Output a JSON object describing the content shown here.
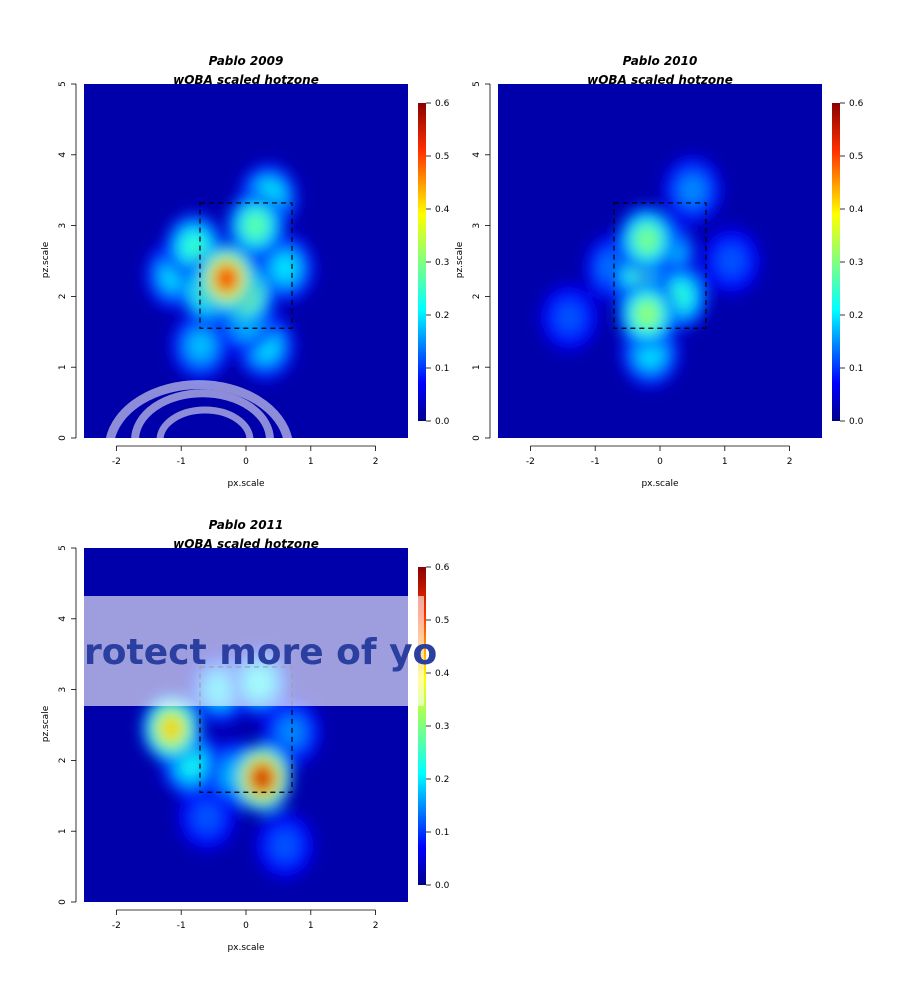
{
  "chart_data": [
    {
      "type": "heatmap",
      "title": "Pablo 2009",
      "subtitle": "wOBA scaled hotzone",
      "xlabel": "px.scale",
      "ylabel": "pz.scale",
      "xlim": [
        -2.5,
        2.5
      ],
      "ylim": [
        0,
        5
      ],
      "xticks": [
        -2,
        -1,
        0,
        1,
        2
      ],
      "yticks": [
        0,
        1,
        2,
        3,
        4,
        5
      ],
      "strike_zone": {
        "x": [
          -0.71,
          0.71
        ],
        "z": [
          1.55,
          3.32
        ]
      },
      "colorbar": {
        "min": 0.0,
        "max": 0.6,
        "ticks": [
          "0.0",
          "0.1",
          "0.2",
          "0.3",
          "0.4",
          "0.5",
          "0.6"
        ]
      },
      "hotspots": [
        {
          "x": -0.3,
          "z": 2.25,
          "value": 0.52
        },
        {
          "x": -0.05,
          "z": 2.05,
          "value": 0.38
        },
        {
          "x": -0.55,
          "z": 2.1,
          "value": 0.33
        },
        {
          "x": 0.15,
          "z": 3.0,
          "value": 0.28
        },
        {
          "x": 0.35,
          "z": 3.4,
          "value": 0.22
        },
        {
          "x": -0.8,
          "z": 2.7,
          "value": 0.25
        },
        {
          "x": -1.1,
          "z": 2.3,
          "value": 0.2
        },
        {
          "x": -0.7,
          "z": 1.3,
          "value": 0.18
        },
        {
          "x": 0.3,
          "z": 1.3,
          "value": 0.2
        },
        {
          "x": 0.6,
          "z": 2.4,
          "value": 0.2
        },
        {
          "x": 0.0,
          "z": 1.7,
          "value": 0.22
        }
      ]
    },
    {
      "type": "heatmap",
      "title": "Pablo 2010",
      "subtitle": "wOBA scaled hotzone",
      "xlabel": "px.scale",
      "ylabel": "pz.scale",
      "xlim": [
        -2.5,
        2.5
      ],
      "ylim": [
        0,
        5
      ],
      "xticks": [
        -2,
        -1,
        0,
        1,
        2
      ],
      "yticks": [
        0,
        1,
        2,
        3,
        4,
        5
      ],
      "strike_zone": {
        "x": [
          -0.71,
          0.71
        ],
        "z": [
          1.55,
          3.32
        ]
      },
      "colorbar": {
        "min": 0.0,
        "max": 0.6,
        "ticks": [
          "0.0",
          "0.1",
          "0.2",
          "0.3",
          "0.4",
          "0.5",
          "0.6"
        ]
      },
      "hotspots": [
        {
          "x": -0.2,
          "z": 2.8,
          "value": 0.3
        },
        {
          "x": -0.2,
          "z": 1.75,
          "value": 0.32
        },
        {
          "x": -0.3,
          "z": 2.3,
          "value": 0.26
        },
        {
          "x": 0.3,
          "z": 2.0,
          "value": 0.24
        },
        {
          "x": 0.1,
          "z": 2.6,
          "value": 0.22
        },
        {
          "x": -0.15,
          "z": 1.2,
          "value": 0.2
        },
        {
          "x": 0.5,
          "z": 3.5,
          "value": 0.15
        },
        {
          "x": -0.7,
          "z": 2.4,
          "value": 0.15
        },
        {
          "x": -1.4,
          "z": 1.7,
          "value": 0.12
        },
        {
          "x": 1.1,
          "z": 2.5,
          "value": 0.12
        }
      ]
    },
    {
      "type": "heatmap",
      "title": "Pablo 2011",
      "subtitle": "wOBA scaled hotzone",
      "xlabel": "px.scale",
      "ylabel": "pz.scale",
      "xlim": [
        -2.5,
        2.5
      ],
      "ylim": [
        0,
        5
      ],
      "xticks": [
        -2,
        -1,
        0,
        1,
        2
      ],
      "yticks": [
        0,
        1,
        2,
        3,
        4,
        5
      ],
      "strike_zone": {
        "x": [
          -0.71,
          0.71
        ],
        "z": [
          1.55,
          3.32
        ]
      },
      "colorbar": {
        "min": 0.0,
        "max": 0.6,
        "ticks": [
          "0.0",
          "0.1",
          "0.2",
          "0.3",
          "0.4",
          "0.5",
          "0.6"
        ]
      },
      "hotspots": [
        {
          "x": 0.25,
          "z": 1.75,
          "value": 0.55
        },
        {
          "x": -1.15,
          "z": 2.45,
          "value": 0.42
        },
        {
          "x": -0.85,
          "z": 1.95,
          "value": 0.22
        },
        {
          "x": -0.4,
          "z": 3.0,
          "value": 0.2
        },
        {
          "x": 0.2,
          "z": 3.1,
          "value": 0.22
        },
        {
          "x": -0.2,
          "z": 1.8,
          "value": 0.18
        },
        {
          "x": 0.7,
          "z": 2.4,
          "value": 0.15
        },
        {
          "x": -0.6,
          "z": 1.2,
          "value": 0.12
        },
        {
          "x": 0.6,
          "z": 0.8,
          "value": 0.12
        }
      ]
    }
  ],
  "watermark": {
    "banner_text": "rotect more of yo"
  },
  "colors": {
    "background": "#ffffff",
    "scale_low": "#00008b",
    "scale_high": "#8b0000"
  }
}
